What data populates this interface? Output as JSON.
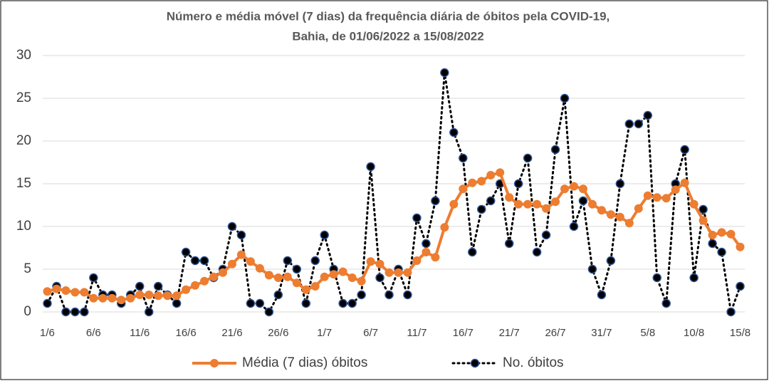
{
  "chart_data": {
    "type": "line",
    "title": [
      "Número e média móvel (7 dias) da frequência diária de óbitos pela COVID-19,",
      "Bahia, de 01/06/2022 a 15/08/2022"
    ],
    "categories": [
      "1/6",
      null,
      null,
      null,
      null,
      "6/6",
      null,
      null,
      null,
      null,
      "11/6",
      null,
      null,
      null,
      null,
      "16/6",
      null,
      null,
      null,
      null,
      "21/6",
      null,
      null,
      null,
      null,
      "26/6",
      null,
      null,
      null,
      null,
      "1/7",
      null,
      null,
      null,
      null,
      "6/7",
      null,
      null,
      null,
      null,
      "11/7",
      null,
      null,
      null,
      null,
      "16/7",
      null,
      null,
      null,
      null,
      "21/7",
      null,
      null,
      null,
      null,
      "26/7",
      null,
      null,
      null,
      null,
      "31/7",
      null,
      null,
      null,
      null,
      "5/8",
      null,
      null,
      null,
      null,
      "10/8",
      null,
      null,
      null,
      null,
      "15/8"
    ],
    "series": [
      {
        "name": "Média (7 dias) óbitos",
        "color": "#ed7d31",
        "style": "solid",
        "values": [
          2.4,
          2.7,
          2.5,
          2.3,
          2.3,
          1.6,
          1.6,
          1.6,
          1.4,
          1.6,
          2.0,
          2.0,
          1.9,
          1.9,
          1.9,
          2.6,
          3.1,
          3.6,
          4.1,
          4.6,
          5.6,
          6.7,
          5.9,
          5.1,
          4.3,
          4.0,
          4.1,
          3.4,
          2.6,
          3.0,
          4.1,
          4.4,
          4.7,
          4.0,
          3.6,
          5.9,
          5.6,
          4.6,
          4.6,
          4.6,
          6.0,
          7.0,
          6.4,
          9.9,
          12.6,
          14.4,
          15.1,
          15.3,
          16.0,
          16.3,
          13.4,
          12.6,
          12.6,
          12.6,
          12.1,
          12.9,
          14.4,
          14.7,
          14.4,
          12.6,
          11.9,
          11.4,
          11.1,
          10.4,
          12.1,
          13.6,
          13.4,
          13.3,
          14.3,
          15.1,
          12.6,
          10.7,
          9.0,
          9.3,
          9.1,
          7.6
        ]
      },
      {
        "name": "No. óbitos",
        "color": "#000000",
        "style": "dotted",
        "values": [
          1,
          3,
          0,
          0,
          0,
          4,
          2,
          2,
          1,
          2,
          3,
          0,
          3,
          2,
          1,
          7,
          6,
          6,
          4,
          5,
          10,
          9,
          1,
          1,
          0,
          2,
          6,
          5,
          1,
          6,
          9,
          5,
          1,
          1,
          2,
          17,
          4,
          2,
          5,
          2,
          11,
          8,
          13,
          28,
          21,
          18,
          7,
          12,
          13,
          15,
          8,
          15,
          18,
          7,
          9,
          19,
          25,
          10,
          13,
          5,
          2,
          6,
          15,
          22,
          22,
          23,
          4,
          1,
          15,
          19,
          4,
          12,
          8,
          7,
          0,
          3
        ]
      }
    ],
    "ylim": [
      0,
      30
    ],
    "yticks": [
      0,
      5,
      10,
      15,
      20,
      25,
      30
    ],
    "grid": true,
    "legend": "bottom"
  }
}
